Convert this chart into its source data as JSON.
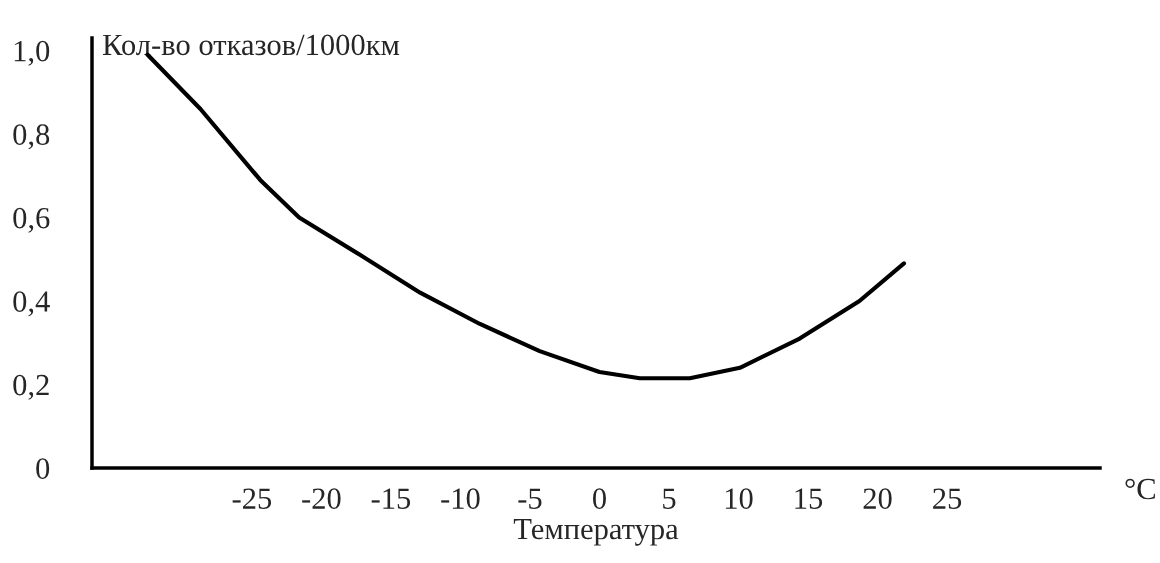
{
  "chart_data": {
    "type": "line",
    "xlabel": "Температура",
    "ylabel": "Кол-во отказов/1000км",
    "annotations": [
      "°C"
    ],
    "x": [
      -32.5,
      -28.7,
      -24.4,
      -21.6,
      -17.2,
      -12.9,
      -8.6,
      -4.3,
      0,
      2.9,
      6.5,
      10.1,
      14.4,
      18.7,
      21.9
    ],
    "series": [
      {
        "color": "#000000",
        "values": [
          0.99,
          0.86,
          0.69,
          0.6,
          0.51,
          0.42,
          0.345,
          0.28,
          0.23,
          0.215,
          0.215,
          0.24,
          0.31,
          0.4,
          0.49
        ]
      }
    ],
    "xlim": [
      -36.5,
      36
    ],
    "ylim": [
      0,
      1.03
    ],
    "xticks": [
      -25,
      -20,
      -15,
      -10,
      -5,
      0,
      5,
      10,
      15,
      20,
      25
    ],
    "yticks": [
      0,
      {
        "value": 0.2,
        "label": "0,2"
      },
      {
        "value": 0.4,
        "label": "0,4"
      },
      {
        "value": 0.6,
        "label": "0,6"
      },
      {
        "value": 0.8,
        "label": "0,8"
      },
      {
        "value": 1.0,
        "label": "1,0"
      }
    ],
    "grid": false,
    "marker": "none",
    "line_style": "solid"
  }
}
